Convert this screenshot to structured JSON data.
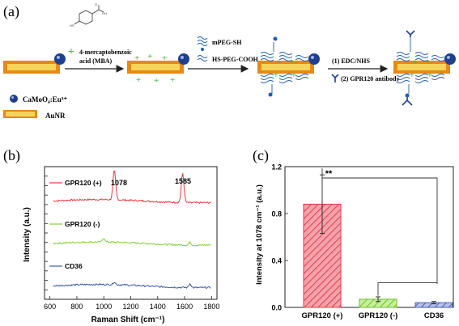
{
  "panel_a": {
    "label": "(a)",
    "step1": {
      "line1": "4-mercaptobenzoic",
      "line2": "acid (MBA)"
    },
    "step2": {
      "reagent1": "mPEG-SH",
      "reagent2": "HS-PEG-COOH"
    },
    "step3": {
      "line1": "(1) EDC/NHS",
      "line2": "(2) GPR120 antibody"
    },
    "legend": {
      "np": "CaMoO₄:Eu³⁺",
      "rod": "AuNR"
    },
    "colors": {
      "rod_outer": "#e48a15",
      "rod_inner": "#f6d35a",
      "np": "#1f3f8f",
      "plus": "#4db84a",
      "peg": "#1f5fb5"
    }
  },
  "panel_b": {
    "label": "(b)",
    "xlabel": "Raman Shift (cm⁻¹)",
    "ylabel": "Intensity (a.u.)",
    "peak_labels": [
      "1078",
      "1585"
    ],
    "legend": [
      {
        "name": "GPR120 (+)",
        "color": "#e8393f"
      },
      {
        "name": "GPR120 (-)",
        "color": "#7fd13b"
      },
      {
        "name": "CD36",
        "color": "#3b5aa6"
      }
    ]
  },
  "panel_c": {
    "label": "(c)",
    "ylabel": "Intensity at 1078 cm⁻¹ (a.u.)",
    "significance": "**"
  },
  "chart_data": [
    {
      "type": "line",
      "xlabel": "Raman Shift (cm⁻¹)",
      "ylabel": "Intensity (a.u.)",
      "xlim": [
        560,
        1840
      ],
      "xticks": [
        600,
        800,
        1000,
        1200,
        1400,
        1600,
        1800
      ],
      "yticks_labeled": false,
      "peaks": [
        1078,
        1585
      ],
      "series": [
        {
          "name": "GPR120 (+)",
          "color": "#e8393f",
          "baseline": 0.74,
          "peaks": [
            {
              "x": 1078,
              "h": 0.22
            },
            {
              "x": 1585,
              "h": 0.22
            }
          ]
        },
        {
          "name": "GPR120 (-)",
          "color": "#7fd13b",
          "baseline": 0.42,
          "peaks": [
            {
              "x": 1000,
              "h": 0.03
            },
            {
              "x": 1640,
              "h": 0.02
            }
          ]
        },
        {
          "name": "CD36",
          "color": "#3b5aa6",
          "baseline": 0.1,
          "peaks": [
            {
              "x": 1078,
              "h": 0.02
            },
            {
              "x": 1640,
              "h": 0.03
            }
          ]
        }
      ],
      "legend_position": "left"
    },
    {
      "type": "bar",
      "ylabel": "Intensity at 1078 cm⁻¹ (a.u.)",
      "categories": [
        "GPR120 (+)",
        "GPR120 (-)",
        "CD36"
      ],
      "values": [
        0.88,
        0.07,
        0.04
      ],
      "errors": [
        0.25,
        0.02,
        0.01
      ],
      "colors": [
        "#f27d86",
        "#9bdc5e",
        "#7f8fc9"
      ],
      "ylim": [
        0,
        1.2
      ],
      "yticks": [
        "0.0",
        "0.4",
        "0.8",
        "1.2"
      ],
      "significance": "**"
    }
  ]
}
